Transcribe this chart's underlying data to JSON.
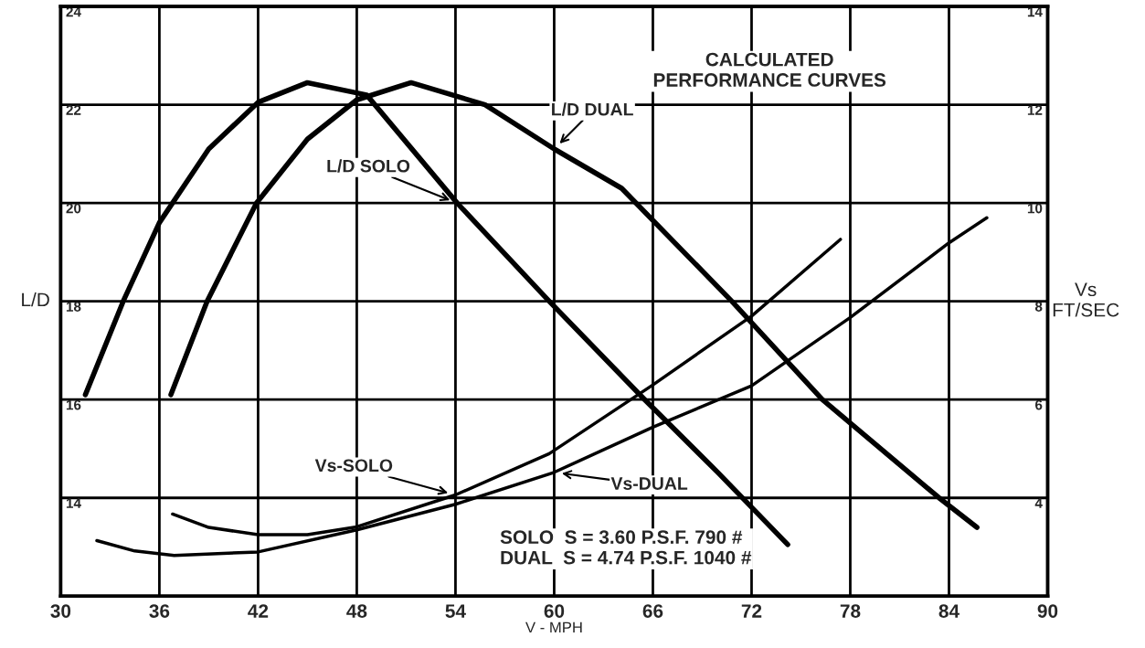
{
  "chart_data": {
    "type": "line",
    "xlabel": "V - MPH",
    "ylabel": "L/D",
    "y2label": "Vs\nFT/SEC",
    "xlim": [
      30,
      90
    ],
    "xticks": [
      30,
      36,
      42,
      48,
      54,
      60,
      66,
      72,
      78,
      84,
      90
    ],
    "ylim": [
      12,
      24
    ],
    "yticks": [
      14,
      16,
      18,
      20,
      22,
      24
    ],
    "y2lim": [
      2,
      14
    ],
    "y2ticks": [
      4,
      6,
      8,
      10,
      12,
      14
    ],
    "grid": true,
    "line_style": "solid",
    "series": [
      {
        "name": "L/D SOLO",
        "color": "#000000",
        "x": [
          31.5,
          33.8,
          36,
          39,
          42,
          45,
          48.6,
          54.1,
          59.7,
          65.5,
          70,
          74.2
        ],
        "values": [
          16.1,
          18,
          19.6,
          21.1,
          22.05,
          22.45,
          22.2,
          20,
          18,
          16,
          14.5,
          13.05
        ]
      },
      {
        "name": "L/D DUAL",
        "color": "#000000",
        "x": [
          36.7,
          38.9,
          41.9,
          45,
          48,
          51.3,
          55.8,
          60,
          64.1,
          70.8,
          76.3,
          83.4,
          85.7
        ],
        "values": [
          16.1,
          18,
          20,
          21.3,
          22.1,
          22.45,
          22,
          21.1,
          20.3,
          18,
          16,
          14,
          13.4
        ]
      },
      {
        "name": "Vs-SOLO",
        "color": "#000000",
        "axis": "y2",
        "x": [
          36.8,
          39,
          42,
          45,
          48,
          54,
          59.7,
          66,
          72,
          77.4
        ],
        "values": [
          3.67,
          3.4,
          3.25,
          3.25,
          3.41,
          4.06,
          4.9,
          6.3,
          7.7,
          9.26
        ]
      },
      {
        "name": "Vs-DUAL",
        "color": "#000000",
        "axis": "y2",
        "x": [
          32.2,
          34.5,
          36.9,
          42,
          48,
          54,
          60,
          66,
          72,
          78,
          84,
          86.3
        ],
        "values": [
          3.13,
          2.92,
          2.83,
          2.9,
          3.35,
          3.87,
          4.52,
          5.44,
          6.28,
          7.67,
          9.19,
          9.7
        ]
      }
    ],
    "annotations": [
      "CALCULATED\nPERFORMANCE CURVES",
      "SOLO  S = 3.60 P.S.F. 790 #\nDUAL  S = 4.74 P.S.F. 1040 #"
    ]
  }
}
